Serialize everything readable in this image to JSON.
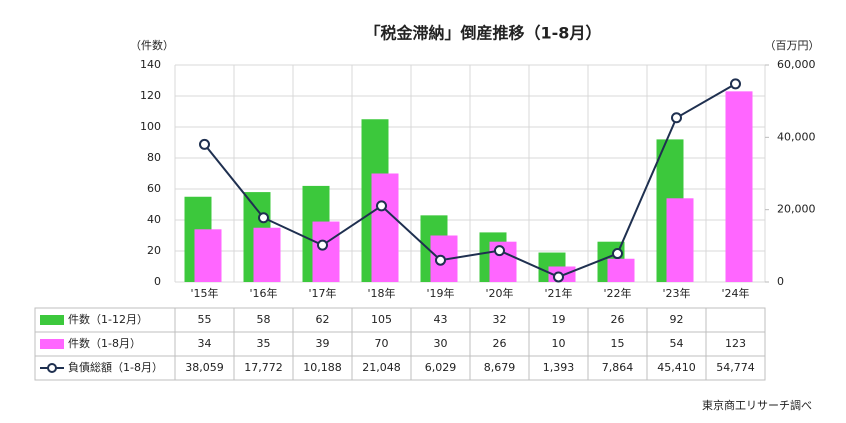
{
  "chart_data": {
    "type": "bar-line",
    "title": "「税金滞納」倒産推移（1-8月）",
    "y_label": "（件数）",
    "y2_label": "（百万円）",
    "source": "東京商工リサーチ調べ",
    "categories": [
      "'15年",
      "'16年",
      "'17年",
      "'18年",
      "'19年",
      "'20年",
      "'21年",
      "'22年",
      "'23年",
      "'24年"
    ],
    "series": [
      {
        "name": "件数（1-12月）",
        "color": "#3cc83c",
        "type": "bar",
        "values": [
          55,
          58,
          62,
          105,
          43,
          32,
          19,
          26,
          92,
          null
        ]
      },
      {
        "name": "件数（1-8月）",
        "color": "#ff66ff",
        "type": "bar",
        "values": [
          34,
          35,
          39,
          70,
          30,
          26,
          10,
          15,
          54,
          123
        ]
      },
      {
        "name": "負債総額（1-8月）",
        "color": "#1f3050",
        "type": "line",
        "axis": "y2",
        "values": [
          38059,
          17772,
          10188,
          21048,
          6029,
          8679,
          1393,
          7864,
          45410,
          54774
        ],
        "value_labels": [
          "38,059",
          "17,772",
          "10,188",
          "21,048",
          "6,029",
          "8,679",
          "1,393",
          "7,864",
          "45,410",
          "54,774"
        ]
      }
    ],
    "ylim": [
      0,
      140
    ],
    "yticks": [
      0,
      20,
      40,
      60,
      80,
      100,
      120,
      140
    ],
    "y2lim": [
      0,
      60000
    ],
    "y2ticks": [
      0,
      {
        "value": 20000,
        "label": "20,000"
      },
      {
        "value": 40000,
        "label": "40,000"
      },
      {
        "value": 60000,
        "label": "60,000"
      }
    ],
    "grid": true
  }
}
